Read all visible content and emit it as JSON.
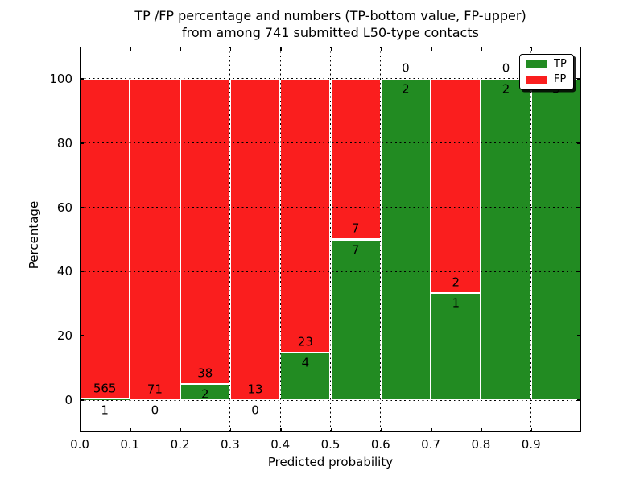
{
  "chart_data": {
    "type": "bar",
    "stacked": true,
    "title_line1": "TP /FP percentage and numbers (TP-bottom value, FP-upper)",
    "title_line2": "from among 741 submitted L50-type contacts",
    "xlabel": "Predicted probability",
    "ylabel": "Percentage",
    "total_contacts": 741,
    "xlim": [
      0.0,
      1.0
    ],
    "ylim": [
      -10,
      110
    ],
    "xticks": [
      0.0,
      0.1,
      0.2,
      0.3,
      0.4,
      0.5,
      0.6,
      0.7,
      0.8,
      0.9
    ],
    "xtick_labels": [
      "0.0",
      "0.1",
      "0.2",
      "0.3",
      "0.4",
      "0.5",
      "0.6",
      "0.7",
      "0.8",
      "0.9"
    ],
    "yticks": [
      0,
      20,
      40,
      60,
      80,
      100
    ],
    "ytick_labels": [
      "0",
      "20",
      "40",
      "60",
      "80",
      "100"
    ],
    "grid": true,
    "grid_style": "dotted",
    "bar_edge_color": "#ffffff",
    "colors": {
      "tp": "#228b22",
      "fp": "#fa1e1e"
    },
    "legend": {
      "position": "upper right",
      "entries": [
        {
          "label": "TP",
          "color_key": "tp"
        },
        {
          "label": "FP",
          "color_key": "fp"
        }
      ]
    },
    "bins": [
      {
        "x_start": 0.0,
        "x_end": 0.1,
        "tp": 1,
        "fp": 565
      },
      {
        "x_start": 0.1,
        "x_end": 0.2,
        "tp": 0,
        "fp": 71
      },
      {
        "x_start": 0.2,
        "x_end": 0.3,
        "tp": 2,
        "fp": 38
      },
      {
        "x_start": 0.3,
        "x_end": 0.4,
        "tp": 0,
        "fp": 13
      },
      {
        "x_start": 0.4,
        "x_end": 0.5,
        "tp": 4,
        "fp": 23
      },
      {
        "x_start": 0.5,
        "x_end": 0.6,
        "tp": 7,
        "fp": 7
      },
      {
        "x_start": 0.6,
        "x_end": 0.7,
        "tp": 2,
        "fp": 0
      },
      {
        "x_start": 0.7,
        "x_end": 0.8,
        "tp": 1,
        "fp": 2
      },
      {
        "x_start": 0.8,
        "x_end": 0.9,
        "tp": 2,
        "fp": 0
      },
      {
        "x_start": 0.9,
        "x_end": 1.0,
        "tp": 3,
        "fp": 0
      }
    ],
    "label_rule": "FP count printed just above TP/FP boundary, TP count just below it"
  }
}
